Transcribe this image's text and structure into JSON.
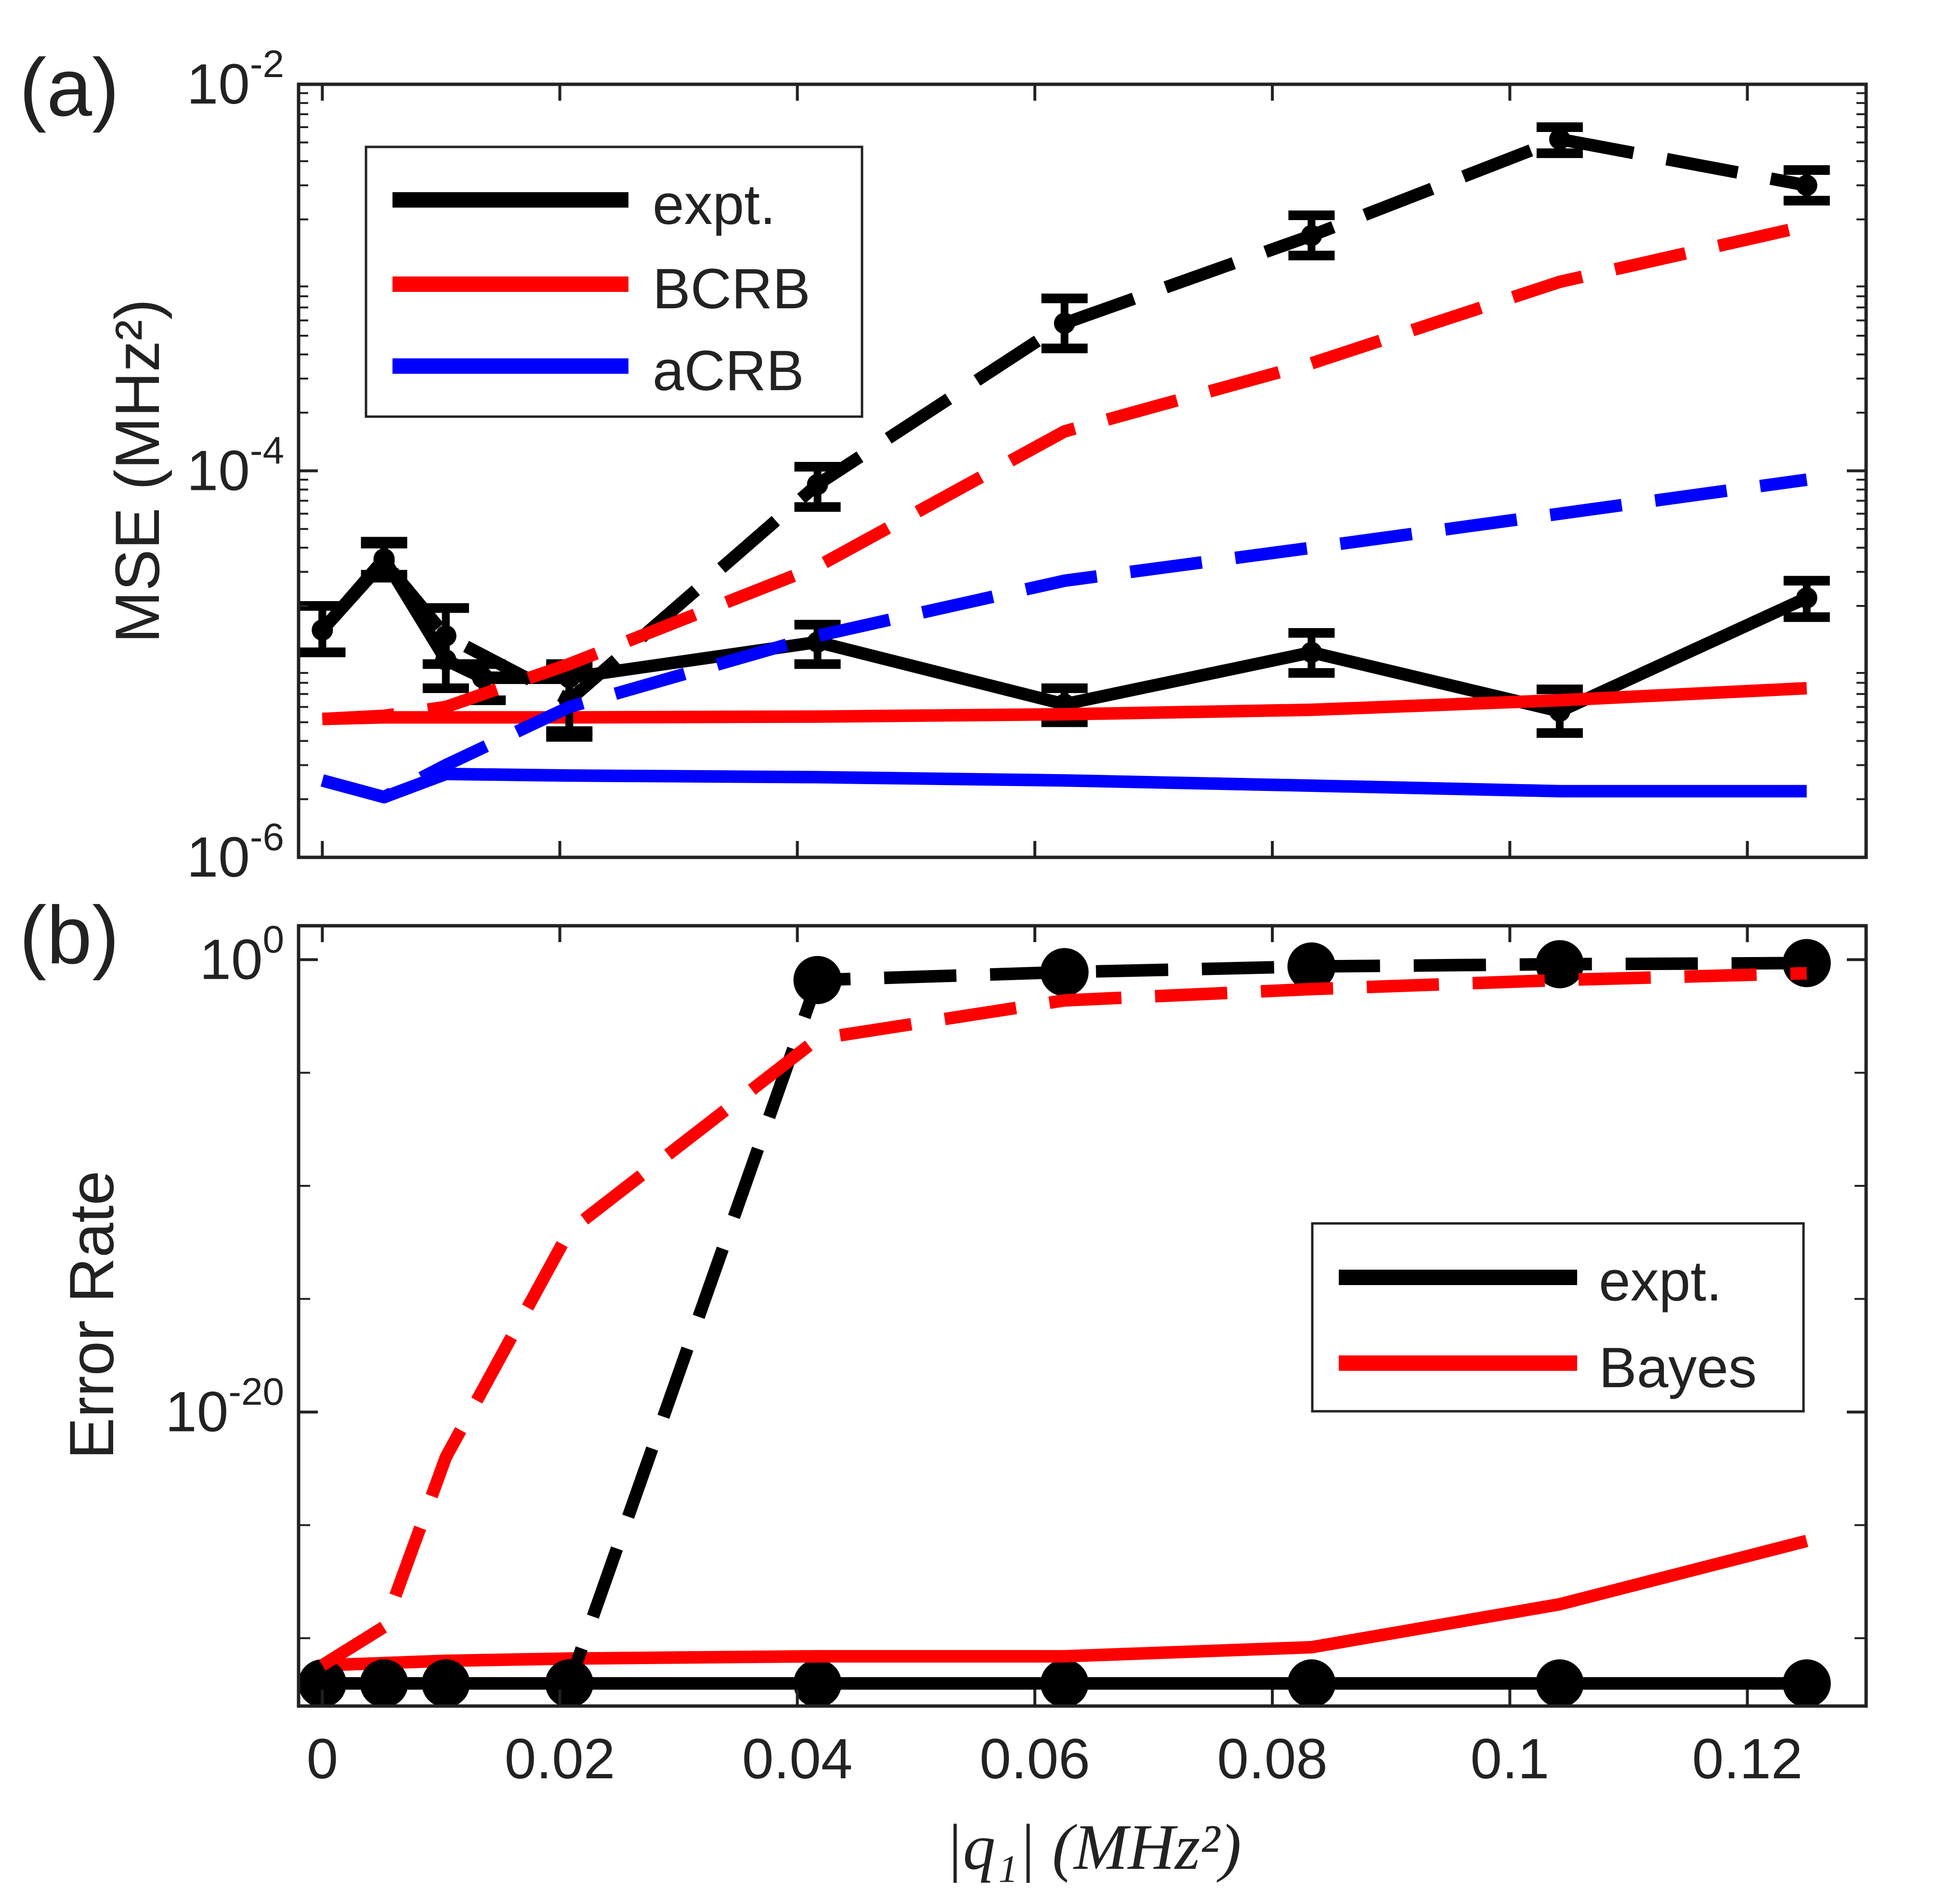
{
  "figure": {
    "panel_a_label": "(a)",
    "panel_b_label": "(b)",
    "xaxis_label": "|q₁|    (MHz²)",
    "colors": {
      "expt": "#000000",
      "bound": "#ff0000",
      "acrb": "#0000ff",
      "frame": "#222222"
    }
  },
  "chart_data": [
    {
      "type": "line",
      "panel": "(a)",
      "title": "",
      "xlabel": "|q₁|    (MHz²)",
      "ylabel": "MSE (MHz²)",
      "yscale": "log",
      "xlim": [
        -0.002,
        0.13
      ],
      "ylim_log10": [
        -6,
        -2
      ],
      "xticks": [
        0,
        0.02,
        0.04,
        0.06,
        0.08,
        0.1,
        0.12
      ],
      "xtick_labels": [
        "0",
        "0.02",
        "0.04",
        "0.06",
        "0.08",
        "0.1",
        "0.12"
      ],
      "yticks_log10": [
        -2,
        -4,
        -6
      ],
      "ytick_labels": [
        "10-2",
        "10-4",
        "10-6"
      ],
      "legend": {
        "placement": "top-left",
        "entries": [
          "expt.",
          "BCRB",
          "aCRB"
        ]
      },
      "x": [
        0,
        0.0052,
        0.0104,
        0.0208,
        0.0417,
        0.0625,
        0.0833,
        0.1042,
        0.125
      ],
      "series": [
        {
          "name": "expt.",
          "style": "solid",
          "color": "#000000",
          "markers": "errorbar",
          "x": [
            0,
            0.0052,
            0.0104,
            0.0135,
            0.0208,
            0.0417,
            0.0625,
            0.0833,
            0.1042,
            0.125
          ],
          "values": [
            1.5e-05,
            3.5e-05,
            1.05e-05,
            8.5e-06,
            8.5e-06,
            1.3e-05,
            6.2e-06,
            1.15e-05,
            5.7e-06,
            2.2e-05
          ],
          "err_low": [
            1.15e-05,
            2.9e-05,
            7.5e-06,
            6.5e-06,
            4.5e-06,
            1e-05,
            5e-06,
            9e-06,
            4.4e-06,
            1.75e-05
          ],
          "err_high": [
            2e-05,
            4.3e-05,
            1.95e-05,
            1e-05,
            1e-05,
            1.6e-05,
            7.5e-06,
            1.45e-05,
            7.4e-06,
            2.7e-05
          ]
        },
        {
          "name": "BCRB",
          "style": "solid",
          "color": "#ff0000",
          "x": [
            0,
            0.0052,
            0.0104,
            0.0208,
            0.0417,
            0.0625,
            0.0833,
            0.1042,
            0.125
          ],
          "values": [
            5.2e-06,
            5.3e-06,
            5.3e-06,
            5.3e-06,
            5.35e-06,
            5.5e-06,
            5.8e-06,
            6.5e-06,
            7.5e-06
          ]
        },
        {
          "name": "aCRB",
          "style": "solid",
          "color": "#0000ff",
          "x": [
            0,
            0.0052,
            0.0104,
            0.0208,
            0.0417,
            0.0625,
            0.0833,
            0.1042,
            0.125
          ],
          "values": [
            2.5e-06,
            2.05e-06,
            2.7e-06,
            2.65e-06,
            2.6e-06,
            2.5e-06,
            2.35e-06,
            2.2e-06,
            2.2e-06
          ]
        },
        {
          "name": "expt. (dashed)",
          "style": "dashed",
          "color": "#000000",
          "markers": "errorbar",
          "x": [
            0,
            0.0052,
            0.0104,
            0.0208,
            0.0417,
            0.0625,
            0.0833,
            0.1042,
            0.125
          ],
          "values": [
            1.5e-05,
            3.4e-05,
            1.4e-05,
            6.5e-06,
            8.5e-05,
            0.00058,
            0.00165,
            0.0052,
            0.003
          ],
          "err_low": [
            1.15e-05,
            2.8e-05,
            1e-05,
            4.2e-06,
            6.5e-05,
            0.00043,
            0.0013,
            0.0044,
            0.0025
          ],
          "err_high": [
            2e-05,
            4.2e-05,
            1.95e-05,
            9.5e-06,
            0.000105,
            0.00078,
            0.0021,
            0.006,
            0.0036
          ]
        },
        {
          "name": "BCRB (dashed)",
          "style": "dashed",
          "color": "#ff0000",
          "x": [
            0,
            0.0052,
            0.0104,
            0.0208,
            0.0417,
            0.0625,
            0.0833,
            0.1042,
            0.125
          ],
          "values": [
            5.2e-06,
            5.4e-06,
            6e-06,
            1e-05,
            3.2e-05,
            0.00016,
            0.00036,
            0.00095,
            0.00185
          ]
        },
        {
          "name": "aCRB (dashed)",
          "style": "dashed",
          "color": "#0000ff",
          "x": [
            0,
            0.0052,
            0.0104,
            0.0208,
            0.0417,
            0.0625,
            0.0833,
            0.1042,
            0.125
          ],
          "values": [
            2.5e-06,
            2.05e-06,
            3e-06,
            6e-06,
            1.4e-05,
            2.7e-05,
            4e-05,
            6e-05,
            9e-05
          ]
        }
      ]
    },
    {
      "type": "line",
      "panel": "(b)",
      "title": "",
      "xlabel": "|q₁|    (MHz²)",
      "ylabel": "Error Rate",
      "yscale": "log",
      "xlim": [
        -0.002,
        0.13
      ],
      "ylim_log10": [
        -33,
        1.5
      ],
      "xticks": [
        0,
        0.02,
        0.04,
        0.06,
        0.08,
        0.1,
        0.12
      ],
      "xtick_labels": [
        "0",
        "0.02",
        "0.04",
        "0.06",
        "0.08",
        "0.1",
        "0.12"
      ],
      "yticks_log10": [
        0,
        -20
      ],
      "ytick_labels": [
        "100",
        "10-20"
      ],
      "legend": {
        "placement": "center-right",
        "entries": [
          "expt.",
          "Bayes"
        ]
      },
      "series": [
        {
          "name": "expt.",
          "style": "solid",
          "color": "#000000",
          "markers": "circle",
          "x": [
            0,
            0.0052,
            0.0104,
            0.0208,
            0.0417,
            0.0625,
            0.0833,
            0.1042,
            0.125
          ],
          "values_log10": [
            -32,
            -32,
            -32,
            -32,
            -32,
            -32,
            -32,
            -32,
            -32
          ]
        },
        {
          "name": "Bayes",
          "style": "solid",
          "color": "#ff0000",
          "x": [
            0,
            0.0052,
            0.0104,
            0.0208,
            0.0417,
            0.0625,
            0.0833,
            0.1042,
            0.125
          ],
          "values_log10": [
            -31.2,
            -31.1,
            -31.0,
            -30.9,
            -30.8,
            -30.8,
            -30.4,
            -28.5,
            -25.7
          ]
        },
        {
          "name": "expt. (dashed)",
          "style": "dashed",
          "color": "#000000",
          "markers": "circle",
          "x": [
            0,
            0.0052,
            0.0104,
            0.0208,
            0.0417,
            0.0625,
            0.0833,
            0.1042,
            0.125
          ],
          "values_log10": [
            -32,
            -32,
            -32,
            -32,
            -0.9,
            -0.55,
            -0.3,
            -0.2,
            -0.15
          ]
        },
        {
          "name": "Bayes (dashed)",
          "style": "dashed",
          "color": "#ff0000",
          "x": [
            0,
            0.0052,
            0.0104,
            0.0208,
            0.0417,
            0.0625,
            0.0833,
            0.1042,
            0.125
          ],
          "values_log10": [
            -31.2,
            -29.5,
            -22,
            -12,
            -3.5,
            -1.8,
            -1.3,
            -0.9,
            -0.6
          ]
        }
      ]
    }
  ]
}
